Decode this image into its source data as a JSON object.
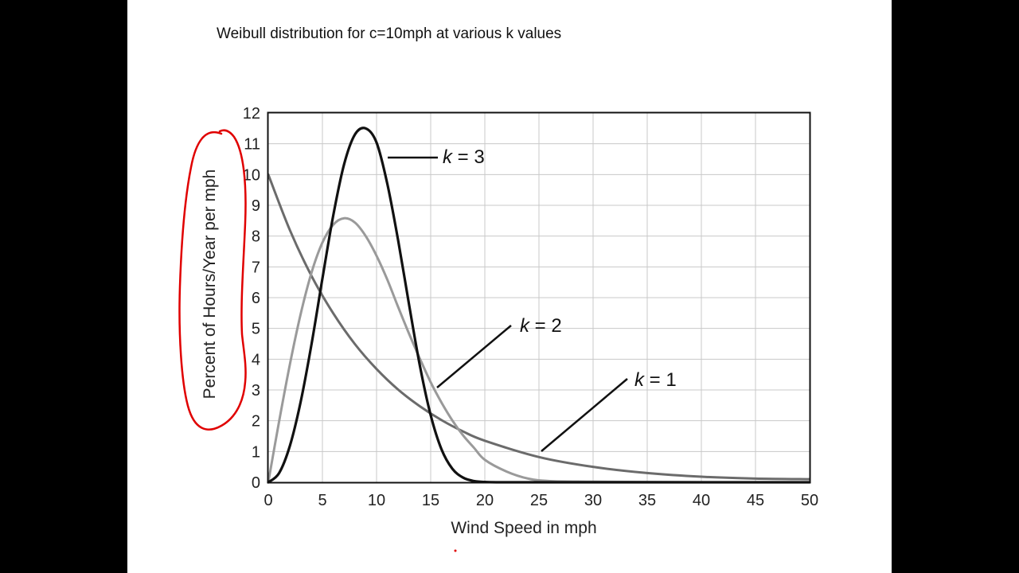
{
  "slide": {
    "title": "Weibull distribution for c=10mph at various k values"
  },
  "chart_data": {
    "type": "line",
    "title": "",
    "xlabel": "Wind Speed in mph",
    "ylabel": "Percent of Hours/Year per mph",
    "xlim": [
      0,
      50
    ],
    "ylim": [
      0,
      12
    ],
    "x_ticks": [
      0,
      5,
      10,
      15,
      20,
      25,
      30,
      35,
      40,
      45,
      50
    ],
    "y_ticks": [
      0,
      1,
      2,
      3,
      4,
      5,
      6,
      7,
      8,
      9,
      10,
      11,
      12
    ],
    "grid": true,
    "legend": "none (inline curve labels with leader lines)",
    "series": [
      {
        "name": "k = 1",
        "label_parts": [
          "k",
          " = 1"
        ],
        "color": "#6b6b6b",
        "x": [
          0,
          2,
          4,
          6,
          8,
          10,
          12,
          14,
          16,
          18,
          20,
          25,
          30,
          35,
          40,
          45,
          50
        ],
        "y": [
          10.0,
          8.19,
          6.7,
          5.49,
          4.49,
          3.68,
          3.01,
          2.47,
          2.02,
          1.65,
          1.35,
          0.82,
          0.5,
          0.3,
          0.18,
          0.12,
          0.1
        ]
      },
      {
        "name": "k = 2",
        "label_parts": [
          "k",
          " = 2"
        ],
        "color": "#9a9a9a",
        "x": [
          0,
          1,
          2,
          3,
          4,
          5,
          6,
          7,
          8,
          9,
          10,
          11,
          12,
          13,
          14,
          15,
          16,
          17,
          18,
          19,
          20,
          22,
          24,
          26,
          30,
          40,
          50
        ],
        "y": [
          0,
          1.98,
          3.84,
          5.48,
          6.82,
          7.79,
          8.37,
          8.58,
          8.44,
          8.0,
          7.36,
          6.58,
          5.69,
          4.83,
          4.02,
          3.25,
          2.59,
          2.01,
          1.52,
          1.12,
          0.73,
          0.35,
          0.12,
          0.04,
          0.02,
          0.0,
          0.0
        ]
      },
      {
        "name": "k = 3",
        "label_parts": [
          "k",
          " = 3"
        ],
        "color": "#111111",
        "x": [
          0,
          1,
          2,
          3,
          4,
          5,
          6,
          7,
          8,
          9,
          10,
          11,
          12,
          13,
          14,
          15,
          16,
          17,
          18,
          19,
          20,
          22,
          30,
          40,
          50
        ],
        "y": [
          0,
          0.3,
          1.19,
          2.63,
          4.5,
          6.62,
          8.67,
          10.33,
          11.3,
          11.5,
          11.04,
          9.69,
          7.85,
          5.78,
          3.79,
          2.18,
          1.07,
          0.44,
          0.15,
          0.04,
          0.01,
          0.0,
          0.0,
          0.0,
          0.0
        ]
      }
    ]
  }
}
